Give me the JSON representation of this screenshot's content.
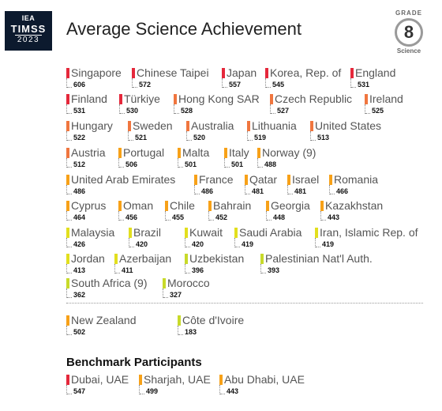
{
  "header": {
    "logo_line1": "IEA",
    "logo_line2": "TIMSS",
    "logo_line3": "2023",
    "title": "Average Science Achievement",
    "grade_label": "GRADE",
    "grade_number": "8",
    "grade_subject": "Science"
  },
  "colors": {
    "red": "#e5283b",
    "orange_red": "#f0763f",
    "orange": "#f7a118",
    "yellow_green": "#e2df1e",
    "lime": "#c8da2a"
  },
  "rows": [
    [
      {
        "name": "Singapore",
        "score": "606",
        "color": "#e5283b"
      },
      {
        "name": "Chinese Taipei",
        "score": "572",
        "color": "#e5283b"
      },
      {
        "name": "Japan",
        "score": "557",
        "color": "#e5283b"
      },
      {
        "name": "Korea, Rep. of",
        "score": "545",
        "color": "#e5283b"
      },
      {
        "name": "England",
        "score": "531",
        "color": "#e5283b"
      }
    ],
    [
      {
        "name": "Finland",
        "score": "531",
        "color": "#e5283b"
      },
      {
        "name": "Türkiye",
        "score": "530",
        "color": "#e5283b"
      },
      {
        "name": "Hong Kong SAR",
        "score": "528",
        "color": "#f0763f"
      },
      {
        "name": "Czech Republic",
        "score": "527",
        "color": "#f0763f"
      },
      {
        "name": "Ireland",
        "score": "525",
        "color": "#f0763f"
      }
    ],
    [
      {
        "name": "Hungary",
        "score": "522",
        "color": "#f0763f"
      },
      {
        "name": "Sweden",
        "score": "521",
        "color": "#f0763f"
      },
      {
        "name": "Australia",
        "score": "520",
        "color": "#f0763f"
      },
      {
        "name": "Lithuania",
        "score": "519",
        "color": "#f0763f"
      },
      {
        "name": "United States",
        "score": "513",
        "color": "#f0763f"
      }
    ],
    [
      {
        "name": "Austria",
        "score": "512",
        "color": "#f0763f"
      },
      {
        "name": "Portugal",
        "score": "506",
        "color": "#f7a118"
      },
      {
        "name": "Malta",
        "score": "501",
        "color": "#f7a118"
      },
      {
        "name": "Italy",
        "score": "501",
        "color": "#f7a118"
      },
      {
        "name": "Norway (9)",
        "score": "488",
        "color": "#f7a118"
      }
    ],
    [
      {
        "name": "United Arab Emirates",
        "score": "486",
        "color": "#f7a118"
      },
      {
        "name": "France",
        "score": "486",
        "color": "#f7a118"
      },
      {
        "name": "Qatar",
        "score": "481",
        "color": "#f7a118"
      },
      {
        "name": "Israel",
        "score": "481",
        "color": "#f7a118"
      },
      {
        "name": "Romania",
        "score": "466",
        "color": "#f7a118"
      }
    ],
    [
      {
        "name": "Cyprus",
        "score": "464",
        "color": "#f7a118"
      },
      {
        "name": "Oman",
        "score": "456",
        "color": "#f7a118"
      },
      {
        "name": "Chile",
        "score": "455",
        "color": "#f7a118"
      },
      {
        "name": "Bahrain",
        "score": "452",
        "color": "#f7a118"
      },
      {
        "name": "Georgia",
        "score": "448",
        "color": "#f7a118"
      },
      {
        "name": "Kazakhstan",
        "score": "443",
        "color": "#f7a118"
      }
    ],
    [
      {
        "name": "Malaysia",
        "score": "426",
        "color": "#e2df1e"
      },
      {
        "name": "Brazil",
        "score": "420",
        "color": "#e2df1e"
      },
      {
        "name": "Kuwait",
        "score": "420",
        "color": "#e2df1e"
      },
      {
        "name": "Saudi Arabia",
        "score": "419",
        "color": "#e2df1e"
      },
      {
        "name": "Iran, Islamic Rep. of",
        "score": "419",
        "color": "#e2df1e"
      }
    ],
    [
      {
        "name": "Jordan",
        "score": "413",
        "color": "#e2df1e"
      },
      {
        "name": "Azerbaijan",
        "score": "411",
        "color": "#e2df1e"
      },
      {
        "name": "Uzbekistan",
        "score": "396",
        "color": "#c8da2a"
      },
      {
        "name": "Palestinian Nat'l Auth.",
        "score": "393",
        "color": "#c8da2a"
      }
    ],
    [
      {
        "name": "South Africa (9)",
        "score": "362",
        "color": "#c8da2a"
      },
      {
        "name": "Morocco",
        "score": "327",
        "color": "#c8da2a"
      }
    ]
  ],
  "extra_rows": [
    [
      {
        "name": "New Zealand",
        "score": "502",
        "color": "#f7a118"
      },
      {
        "name": "Côte d'Ivoire",
        "score": "183",
        "color": "#c8da2a"
      }
    ]
  ],
  "benchmark": {
    "title": "Benchmark Participants",
    "items": [
      {
        "name": "Dubai, UAE",
        "score": "547",
        "color": "#e5283b"
      },
      {
        "name": "Sharjah, UAE",
        "score": "499",
        "color": "#f7a118"
      },
      {
        "name": "Abu Dhabi, UAE",
        "score": "443",
        "color": "#f7a118"
      }
    ]
  }
}
